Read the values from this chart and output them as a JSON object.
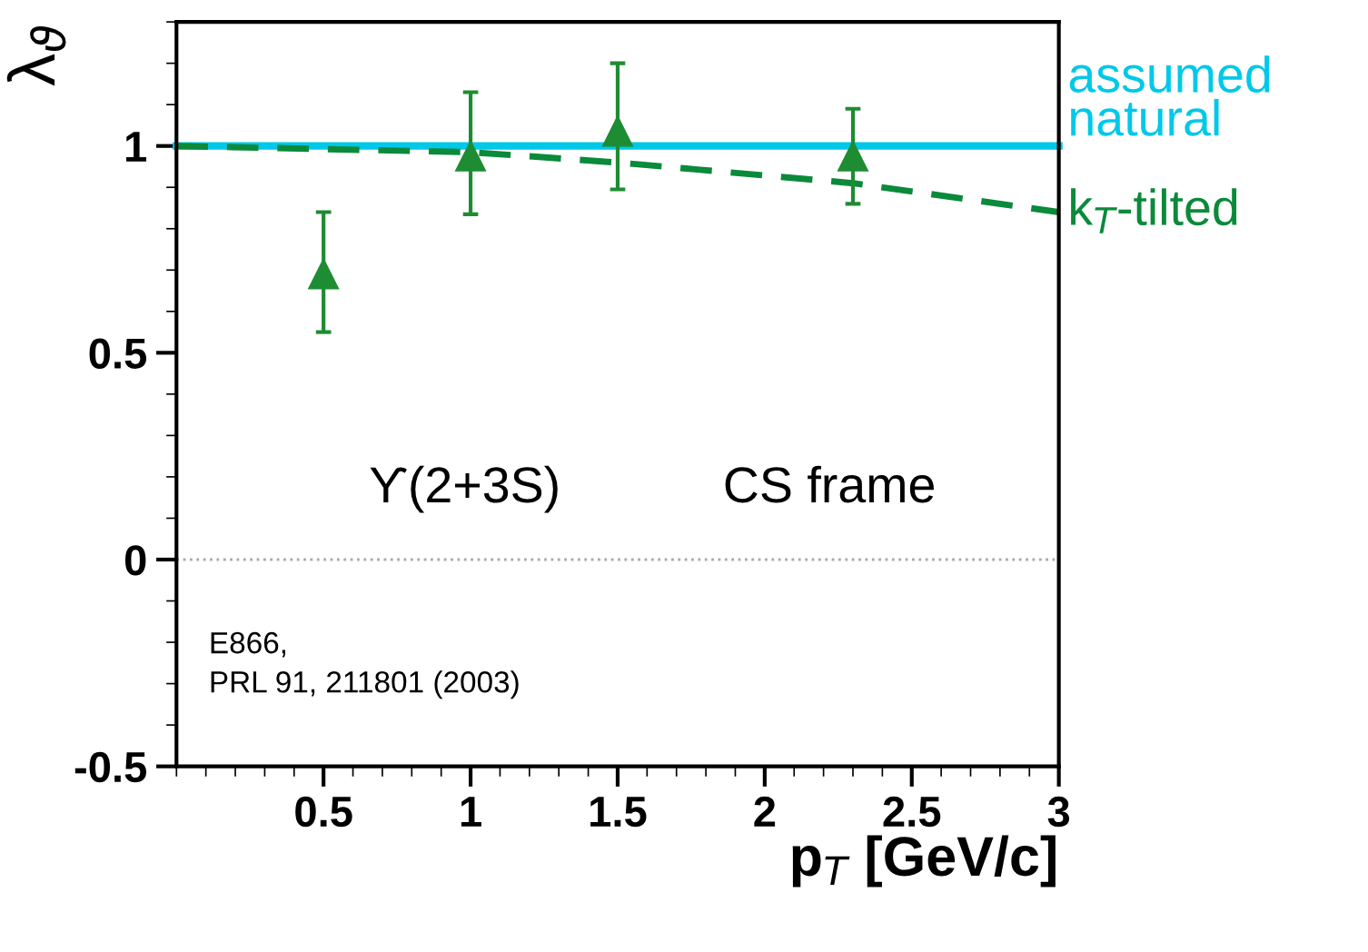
{
  "chart_data": {
    "type": "line",
    "xlabel": "p$_{T}$ [GeV/c]",
    "ylabel": "λ$_{ϑ}$",
    "xlim": [
      0,
      3
    ],
    "xticks": [
      0.5,
      1,
      1.5,
      2,
      2.5,
      3
    ],
    "ylim": [
      -0.5,
      1.3
    ],
    "yticks": [
      -0.5,
      0,
      0.5,
      1
    ],
    "series": [
      {
        "name": "assumed\nnatural",
        "color": "#00c8e8",
        "line_style": "solid",
        "x": [
          0,
          3
        ],
        "values": [
          1,
          1
        ]
      },
      {
        "name": "k$_{T}$-tilted",
        "color": "#0a8a3a",
        "line_style": "dashed",
        "x": [
          0,
          1,
          1.5,
          2.3,
          3
        ],
        "values": [
          1,
          0.985,
          0.96,
          0.91,
          0.84
        ]
      },
      {
        "type": "scatter",
        "color": "#1e8c32",
        "marker": "triangle",
        "x": [
          0.5,
          1,
          1.5,
          2.3
        ],
        "values": [
          0.69,
          0.975,
          1.035,
          0.975
        ],
        "errors": [
          [
            0.55,
            0.84
          ],
          [
            0.835,
            1.13
          ],
          [
            0.895,
            1.2
          ],
          [
            0.86,
            1.09
          ]
        ]
      }
    ],
    "ref_lines": [
      {
        "axis": "y",
        "value": 0,
        "color": "#aaaaaa",
        "line_style": "dotted"
      }
    ],
    "annotations": [
      "ϒ(2+3S)",
      "CS frame",
      "E866,\nPRL 91, 211801 (2003)"
    ],
    "legend": false,
    "grid": false
  }
}
